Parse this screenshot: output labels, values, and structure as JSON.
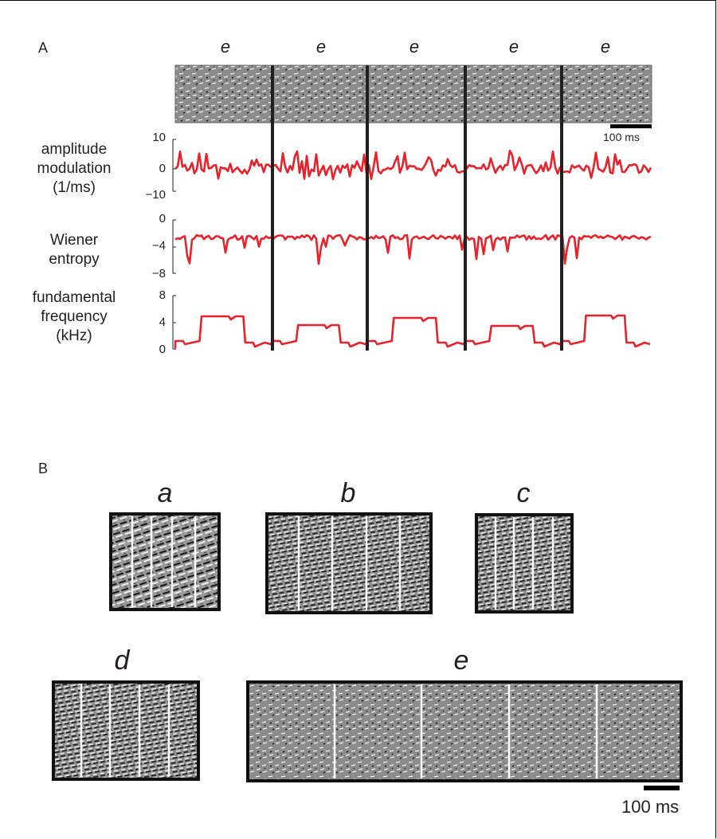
{
  "panels": {
    "a_label": "A",
    "b_label": "B"
  },
  "panel_a": {
    "syllable_labels": [
      "e",
      "e",
      "e",
      "e",
      "e"
    ],
    "scale_bar": "100 ms",
    "trace_labels": {
      "amplitude": [
        "amplitude",
        "modulation",
        "(1/ms)"
      ],
      "wiener": [
        "Wiener",
        "entropy"
      ],
      "fundamental": [
        "fundamental",
        "frequency",
        "(kHz)"
      ]
    },
    "ticks": {
      "amplitude": [
        "10",
        "0",
        "−10"
      ],
      "wiener": [
        "0",
        "−4",
        "−8"
      ],
      "fundamental": [
        "8",
        "4",
        "0"
      ]
    },
    "trace_color": "#e8222a"
  },
  "panel_b": {
    "syllables": [
      "a",
      "b",
      "c",
      "d",
      "e"
    ],
    "scale_bar": "100 ms"
  }
}
